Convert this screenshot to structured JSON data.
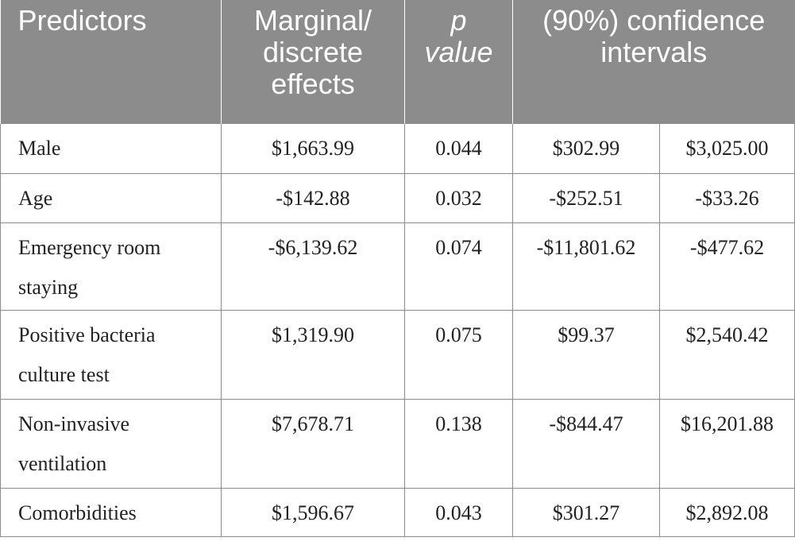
{
  "table": {
    "headers": {
      "predictors": "Predictors",
      "effects": "Marginal/ discrete effects",
      "p_value_p": "p",
      "p_value_value": "value",
      "ci": "(90%) confidence intervals"
    },
    "rows": [
      {
        "predictor": "Male",
        "effect": "$1,663.99",
        "p": "0.044",
        "ci_low": "$302.99",
        "ci_high": "$3,025.00"
      },
      {
        "predictor": "Age",
        "effect": "-$142.88",
        "p": "0.032",
        "ci_low": "-$252.51",
        "ci_high": "-$33.26"
      },
      {
        "predictor": "Emergency room staying",
        "effect": "-$6,139.62",
        "p": "0.074",
        "ci_low": "-$11,801.62",
        "ci_high": "-$477.62"
      },
      {
        "predictor": "Positive bacteria culture test",
        "effect": "$1,319.90",
        "p": "0.075",
        "ci_low": "$99.37",
        "ci_high": "$2,540.42"
      },
      {
        "predictor": "Non-invasive ventilation",
        "effect": "$7,678.71",
        "p": "0.138",
        "ci_low": "-$844.47",
        "ci_high": "$16,201.88"
      },
      {
        "predictor": "Comorbidities",
        "effect": "$1,596.67",
        "p": "0.043",
        "ci_low": "$301.27",
        "ci_high": "$2,892.08"
      }
    ]
  }
}
